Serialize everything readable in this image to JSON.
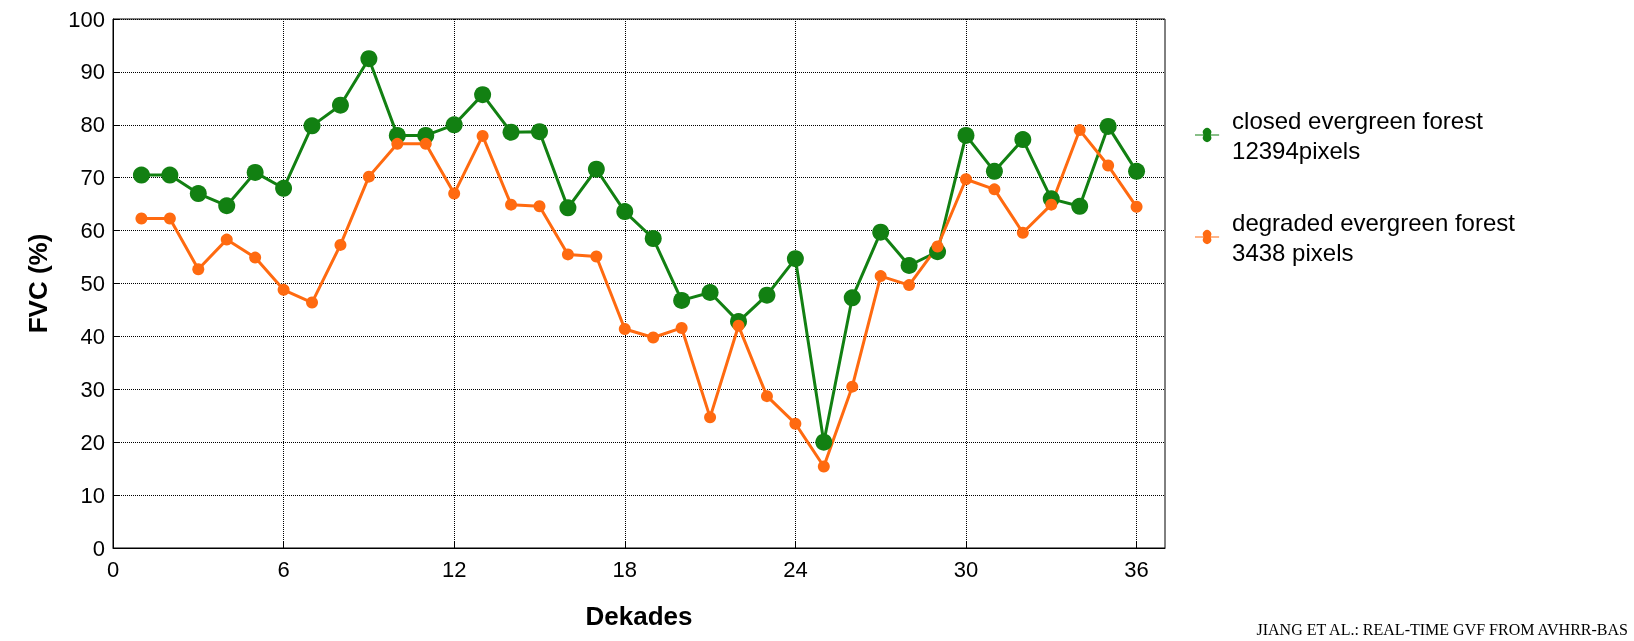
{
  "chart_data": {
    "type": "line",
    "xlabel": "Dekades",
    "ylabel": "FVC (%)",
    "x": [
      1,
      2,
      3,
      4,
      5,
      6,
      7,
      8,
      9,
      10,
      11,
      12,
      13,
      14,
      15,
      16,
      17,
      18,
      19,
      20,
      21,
      22,
      23,
      24,
      25,
      26,
      27,
      28,
      29,
      30,
      31,
      32,
      33,
      34,
      35,
      36
    ],
    "series": [
      {
        "name": "closed evergreen forest\n12394pixels",
        "color": "#128012",
        "values": [
          70.5,
          70.5,
          67,
          64.7,
          71,
          68,
          79.8,
          83.7,
          92.5,
          78,
          78,
          80,
          85.7,
          78.6,
          78.7,
          64.3,
          71.6,
          63.6,
          58.5,
          46.8,
          48.3,
          42.8,
          47.8,
          54.7,
          20,
          47.3,
          59.7,
          53.4,
          56,
          78,
          71.2,
          77.2,
          66,
          64.6,
          79.7,
          71.2
        ]
      },
      {
        "name": "degraded evergreen forest\n3438 pixels",
        "color": "#ff6a10",
        "values": [
          62.3,
          62.3,
          52.7,
          58.3,
          54.9,
          48.8,
          46.4,
          57.3,
          70.2,
          76.4,
          76.4,
          67,
          77.9,
          64.9,
          64.6,
          55.5,
          55.1,
          41.4,
          39.8,
          41.6,
          24.7,
          42,
          28.7,
          23.5,
          15.4,
          30.5,
          51.4,
          49.7,
          57,
          69.7,
          67.8,
          59.6,
          64.9,
          79,
          72.3,
          64.5
        ]
      }
    ],
    "xlim": [
      0,
      37
    ],
    "xticks": [
      0,
      6,
      12,
      18,
      24,
      30,
      36
    ],
    "ylim": [
      0,
      100
    ],
    "yticks": [
      0,
      10,
      20,
      30,
      40,
      50,
      60,
      70,
      80,
      90,
      100
    ],
    "grid": true,
    "legend": "right",
    "marker": "circle",
    "line_style": "solid",
    "annotations": [
      "JIANG ET AL.: REAL-TIME GVF FROM AVHRR-BAS"
    ]
  }
}
